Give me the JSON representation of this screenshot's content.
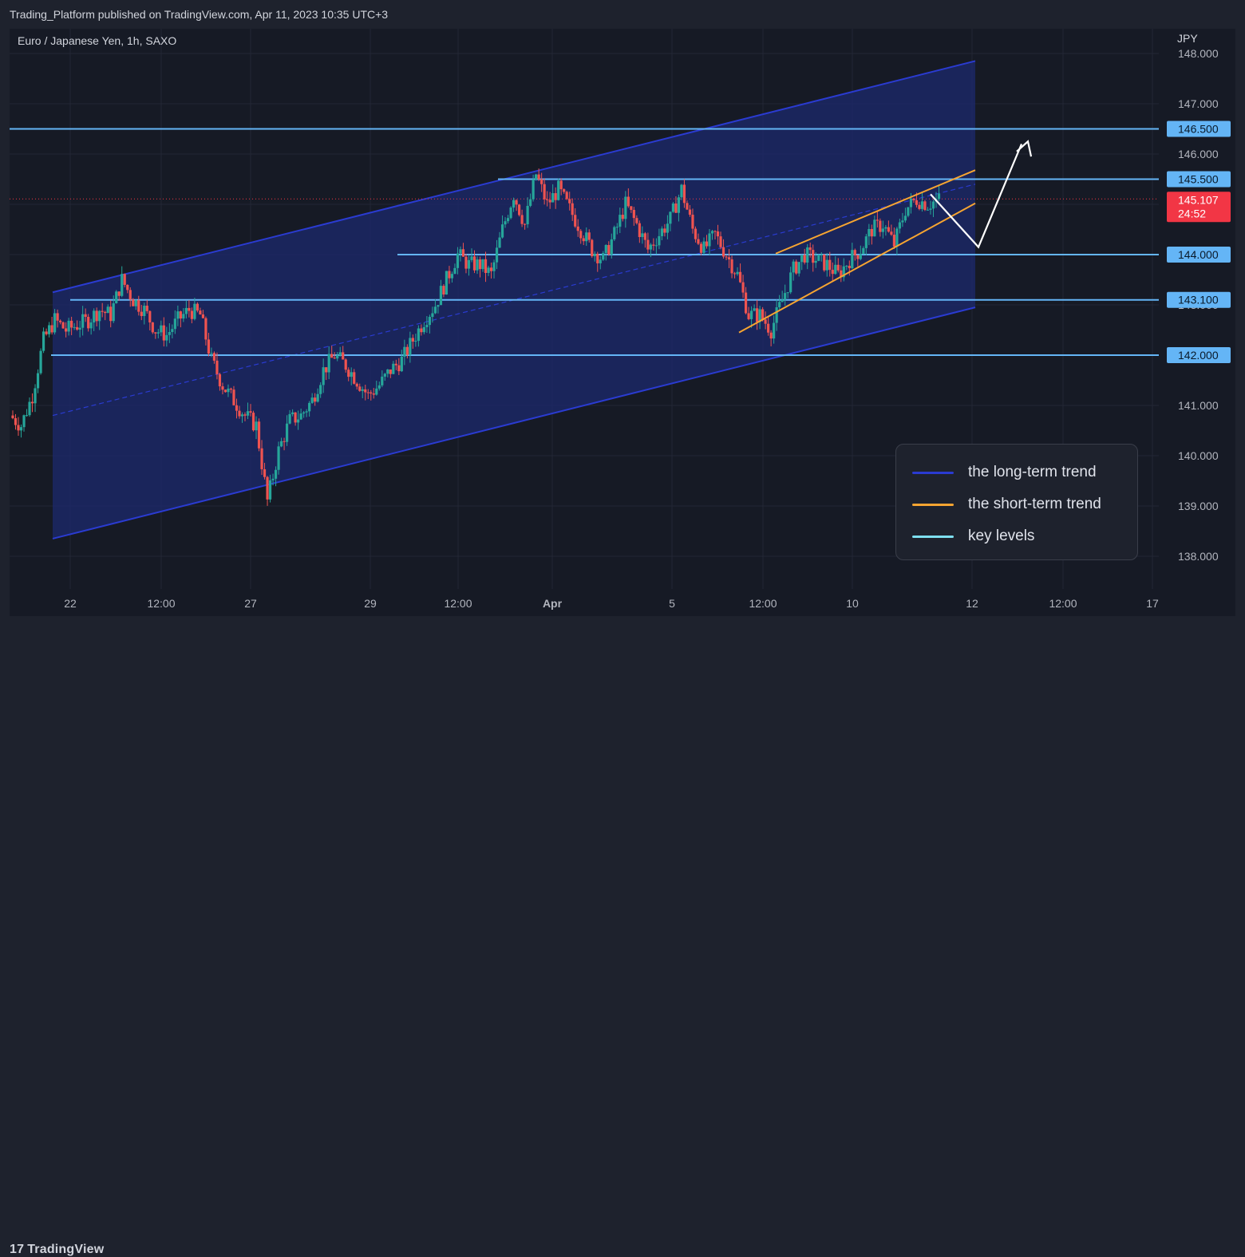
{
  "header": {
    "publisher_text": "Trading_Platform published on TradingView.com, Apr 11, 2023 10:35 UTC+3"
  },
  "footer": {
    "brand": "TradingView",
    "logo_mark": "17"
  },
  "chart_data": {
    "type": "candlestick",
    "symbol_label": "Euro / Japanese Yen, 1h, SAXO",
    "currency": "JPY",
    "y_ticks": [
      "148.000",
      "147.000",
      "146.000",
      "145.000",
      "144.000",
      "143.000",
      "141.000",
      "140.000",
      "139.000",
      "138.000"
    ],
    "y_tick_values": [
      148.0,
      147.0,
      146.0,
      145.0,
      144.0,
      143.0,
      141.0,
      140.0,
      139.0,
      138.0
    ],
    "x_ticks": [
      "22",
      "12:00",
      "27",
      "29",
      "12:00",
      "Apr",
      "5",
      "12:00",
      "10",
      "12",
      "12:00",
      "17"
    ],
    "ylim": [
      137.2,
      148.6
    ],
    "grid": true,
    "key_levels": [
      {
        "value": 146.5,
        "label": "146.500"
      },
      {
        "value": 145.5,
        "label": "145.500"
      },
      {
        "value": 144.0,
        "label": "144.000"
      },
      {
        "value": 143.1,
        "label": "143.100"
      },
      {
        "value": 142.0,
        "label": "142.000"
      }
    ],
    "current_price": {
      "value": 145.107,
      "label": "145.107",
      "countdown": "24:52"
    },
    "colors": {
      "up": "#26a69a",
      "down": "#ef5350",
      "key_level": "#64b5f6",
      "long_trend": "#2a3bd1",
      "short_trend": "#f7a531",
      "price_label": "#f23645",
      "level_label": "#64b5f6",
      "channel_fill": "#1c2a6e"
    },
    "legend": [
      {
        "label": "the long-term trend",
        "color": "#2a3bd1"
      },
      {
        "label": "the short-term trend",
        "color": "#f7a531"
      },
      {
        "label": "key levels",
        "color": "#7ee0f0"
      }
    ],
    "price_path": [
      140.8,
      140.6,
      141.2,
      142.3,
      142.7,
      142.5,
      142.6,
      142.7,
      142.9,
      142.8,
      143.5,
      143.1,
      142.9,
      142.5,
      142.4,
      142.7,
      142.9,
      142.8,
      141.9,
      141.4,
      141.1,
      140.8,
      140.6,
      139.1,
      140.1,
      140.7,
      140.8,
      141.1,
      141.7,
      142.0,
      141.8,
      141.5,
      141.2,
      141.4,
      141.7,
      141.9,
      142.3,
      142.7,
      143.0,
      143.5,
      144.0,
      143.8,
      143.8,
      143.6,
      144.5,
      145.2,
      144.6,
      145.6,
      145.0,
      145.3,
      144.9,
      144.5,
      144.1,
      143.9,
      144.4,
      145.0,
      144.6,
      144.1,
      144.4,
      144.7,
      145.3,
      144.5,
      144.1,
      144.4,
      144.0,
      143.6,
      142.8,
      142.8,
      142.5,
      143.1,
      143.7,
      144.0,
      143.9,
      143.8,
      143.6,
      143.9,
      144.1,
      144.5,
      144.6,
      144.2,
      144.9,
      145.1,
      145.0,
      145.1
    ]
  }
}
